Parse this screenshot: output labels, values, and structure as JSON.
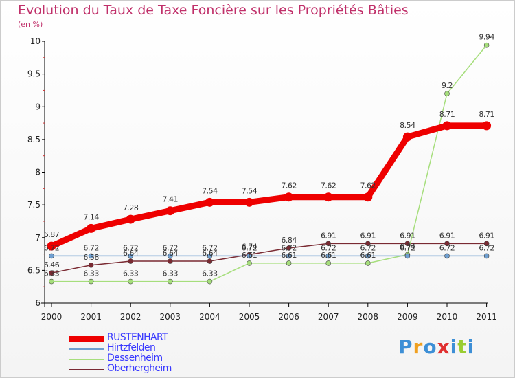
{
  "title": "Evolution du Taux de Taxe Foncière sur les Propriétés Bâties",
  "subtitle": "(en %)",
  "logo": {
    "letters": [
      "P",
      "r",
      "o",
      "x",
      "i",
      "t",
      "i"
    ],
    "colors": [
      "#3d8fd6",
      "#f0a020",
      "#3d8fd6",
      "#e03030",
      "#3d8fd6",
      "#9acd32",
      "#3d8fd6"
    ]
  },
  "chart_data": {
    "type": "line",
    "title": "Evolution du Taux de Taxe Foncière sur les Propriétés Bâties",
    "ylabel": "(en %)",
    "xlabel": "",
    "x": [
      "2000",
      "2001",
      "2002",
      "2003",
      "2004",
      "2005",
      "2006",
      "2007",
      "2008",
      "2009",
      "2010",
      "2011"
    ],
    "ylim": [
      6,
      10
    ],
    "yticks": [
      "6",
      "6.5",
      "7",
      "7.5",
      "8",
      "8.5",
      "9",
      "9.5",
      "10"
    ],
    "series": [
      {
        "name": "RUSTENHART",
        "color": "#ee0000",
        "values": [
          6.87,
          7.14,
          7.28,
          7.41,
          7.54,
          7.54,
          7.62,
          7.62,
          7.62,
          8.54,
          8.71,
          8.71
        ],
        "labels": [
          "6.87",
          "7.14",
          "7.28",
          "7.41",
          "7.54",
          "7.54",
          "7.62",
          "7.62",
          "7.62",
          "8.54",
          "8.71",
          "8.71"
        ]
      },
      {
        "name": "Hirtzfelden",
        "color": "#6f9fd0",
        "values": [
          6.72,
          6.72,
          6.72,
          6.72,
          6.72,
          6.72,
          6.72,
          6.72,
          6.72,
          6.72,
          6.72,
          6.72
        ],
        "labels": [
          "6.72",
          "6.72",
          "6.72",
          "6.72",
          "6.72",
          "6.72",
          "6.72",
          "6.72",
          "6.72",
          "6.72",
          "6.72",
          "6.72"
        ]
      },
      {
        "name": "Dessenheim",
        "color": "#a6de7c",
        "values": [
          6.33,
          6.33,
          6.33,
          6.33,
          6.33,
          6.61,
          6.61,
          6.61,
          6.61,
          6.74,
          9.2,
          9.94
        ],
        "labels": [
          "6.33",
          "6.33",
          "6.33",
          "6.33",
          "6.33",
          "6.61",
          "6.61",
          "6.61",
          "6.61",
          "6.74",
          "9.2",
          "9.94"
        ]
      },
      {
        "name": "Oberhergheim",
        "color": "#7a2a32",
        "values": [
          6.46,
          6.58,
          6.64,
          6.64,
          6.64,
          6.74,
          6.84,
          6.91,
          6.91,
          6.91,
          6.91,
          6.91
        ],
        "labels": [
          "6.46",
          "6.58",
          "6.64",
          "6.64",
          "6.64",
          "6.74",
          "6.84",
          "6.91",
          "6.91",
          "6.91",
          "6.91",
          "6.91"
        ]
      }
    ],
    "legend": "bottom-left"
  }
}
